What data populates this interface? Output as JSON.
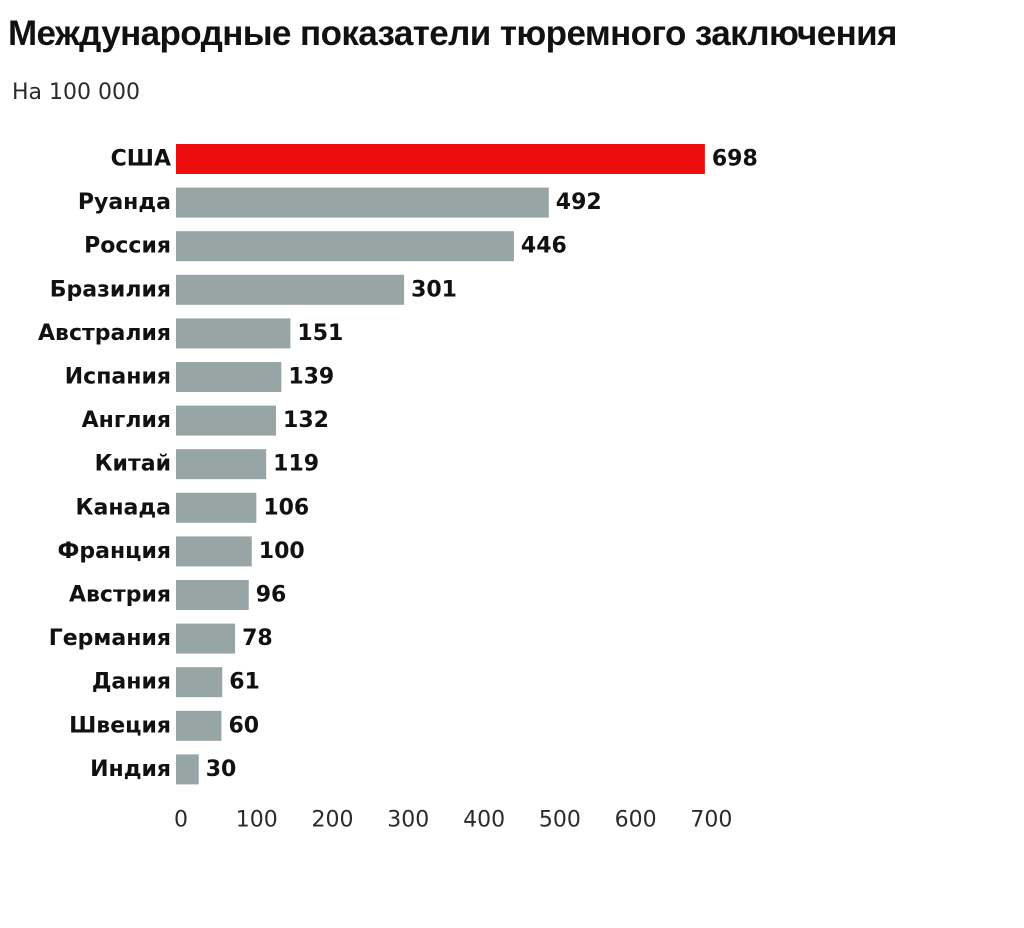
{
  "chart_data": {
    "type": "bar",
    "orientation": "horizontal",
    "title": "Международные показатели тюремного заключения",
    "subtitle": "На 100 000",
    "categories": [
      "США",
      "Руанда",
      "Россия",
      "Бразилия",
      "Австралия",
      "Испания",
      "Англия",
      "Китай",
      "Канада",
      "Франция",
      "Австрия",
      "Германия",
      "Дания",
      "Швеция",
      "Индия"
    ],
    "values": [
      698,
      492,
      446,
      301,
      151,
      139,
      132,
      119,
      106,
      100,
      96,
      78,
      61,
      60,
      30
    ],
    "highlight_index": 0,
    "xlim": [
      0,
      700
    ],
    "xticks": [
      0,
      100,
      200,
      300,
      400,
      500,
      600,
      700
    ],
    "grid": false,
    "colors": {
      "highlight": "#ee0d0d",
      "bar": "#98a5a5",
      "text": "#111111"
    }
  }
}
